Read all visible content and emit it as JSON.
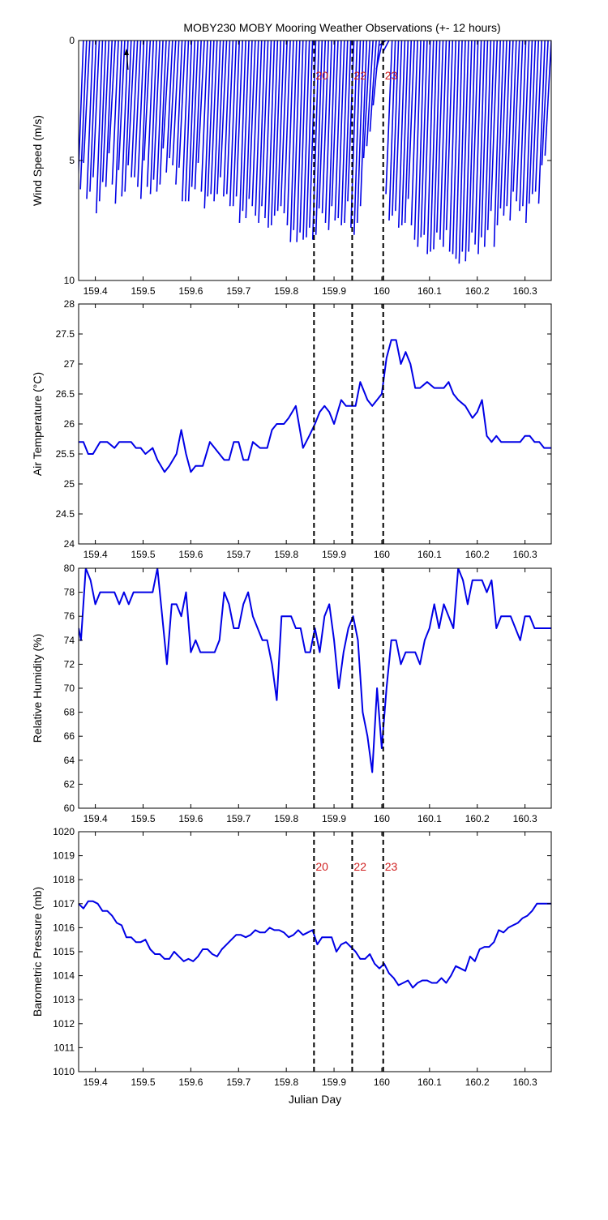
{
  "title": "MOBY230 MOBY Mooring Weather Observations (+- 12 hours)",
  "colors": {
    "series": "#0000e6",
    "marker_label": "#d02020",
    "axes": "#000000"
  },
  "markers": [
    {
      "x": 159.858,
      "label": "20"
    },
    {
      "x": 159.938,
      "label": "22"
    },
    {
      "x": 160.003,
      "label": "23"
    }
  ],
  "chart_data": [
    {
      "type": "line",
      "name": "wind",
      "ylabel": "Wind Speed (m/s)",
      "xlabel": "",
      "xlim": [
        159.365,
        160.355
      ],
      "ylim": [
        0,
        10
      ],
      "y_reversed": true,
      "grid": false,
      "x_ticks": [
        159.4,
        159.5,
        159.6,
        159.7,
        159.8,
        159.9,
        160,
        160.1,
        160.2,
        160.3
      ],
      "y_ticks": [
        0,
        5,
        10
      ],
      "show_marker_labels": true,
      "start_x": 159.375,
      "end_x": 160.355,
      "count": 148,
      "ends": [
        6.9,
        6.2,
        5.1,
        6.6,
        6.3,
        5.7,
        7.2,
        6.7,
        5.9,
        6.1,
        4.7,
        6.0,
        6.8,
        5.4,
        6.5,
        6.3,
        5.2,
        5.7,
        5.7,
        6.1,
        6.6,
        5.0,
        6.1,
        6.4,
        5.8,
        6.3,
        6.0,
        4.5,
        5.5,
        4.9,
        5.2,
        6.0,
        5.3,
        6.7,
        6.7,
        6.7,
        6.1,
        6.2,
        5.1,
        6.3,
        7.0,
        6.5,
        6.4,
        6.7,
        6.4,
        5.7,
        6.5,
        6.4,
        6.9,
        6.9,
        6.5,
        7.6,
        7.1,
        7.4,
        6.6,
        6.9,
        7.3,
        7.6,
        6.9,
        7.4,
        7.8,
        7.7,
        7.3,
        7.1,
        6.9,
        7.2,
        7.7,
        8.4,
        7.9,
        8.4,
        8.0,
        8.3,
        8.2,
        7.8,
        8.3,
        8.1,
        7.0,
        7.2,
        7.6,
        7.9,
        6.9,
        7.5,
        7.4,
        7.7,
        7.6,
        6.7,
        7.8,
        8.1,
        7.6,
        6.9,
        4.9,
        4.4,
        3.8,
        2.7,
        1.2,
        0.2,
        0.5,
        6.4,
        7.5,
        7.3,
        7.1,
        7.8,
        7.7,
        7.6,
        6.6,
        7.7,
        8.3,
        8.6,
        8.2,
        8.1,
        8.9,
        8.8,
        8.7,
        8.0,
        8.3,
        8.6,
        7.9,
        8.8,
        8.9,
        9.1,
        9.3,
        8.8,
        9.2,
        8.8,
        8.0,
        8.5,
        8.9,
        8.2,
        8.6,
        7.9,
        7.1,
        8.6,
        7.7,
        7.0,
        7.3,
        6.9,
        7.5,
        6.3,
        6.7,
        7.1,
        6.9,
        7.6,
        6.8,
        6.4,
        6.3,
        6.8,
        5.2,
        4.8
      ]
    },
    {
      "type": "line",
      "name": "air-temperature",
      "ylabel": "Air Temperature (°C)",
      "xlabel": "",
      "xlim": [
        159.365,
        160.355
      ],
      "ylim": [
        24,
        28
      ],
      "y_reversed": false,
      "grid": false,
      "x_ticks": [
        159.4,
        159.5,
        159.6,
        159.7,
        159.8,
        159.9,
        160,
        160.1,
        160.2,
        160.3
      ],
      "y_ticks": [
        24,
        24.5,
        25,
        25.5,
        26,
        26.5,
        27,
        27.5,
        28
      ],
      "show_marker_labels": false,
      "x": [
        159.365,
        159.375,
        159.385,
        159.395,
        159.41,
        159.425,
        159.44,
        159.45,
        159.46,
        159.475,
        159.485,
        159.495,
        159.505,
        159.52,
        159.53,
        159.545,
        159.555,
        159.57,
        159.58,
        159.59,
        159.6,
        159.61,
        159.625,
        159.64,
        159.65,
        159.66,
        159.67,
        159.68,
        159.69,
        159.7,
        159.71,
        159.72,
        159.73,
        159.745,
        159.76,
        159.77,
        159.78,
        159.795,
        159.805,
        159.82,
        159.835,
        159.848,
        159.86,
        159.87,
        159.88,
        159.89,
        159.9,
        159.915,
        159.925,
        159.935,
        159.945,
        159.955,
        159.97,
        159.98,
        159.99,
        160.0,
        160.01,
        160.02,
        160.03,
        160.04,
        160.05,
        160.06,
        160.07,
        160.08,
        160.095,
        160.11,
        160.12,
        160.13,
        160.14,
        160.15,
        160.16,
        160.175,
        160.19,
        160.2,
        160.21,
        160.22,
        160.23,
        160.24,
        160.25,
        160.26,
        160.27,
        160.28,
        160.29,
        160.3,
        160.31,
        160.32,
        160.33,
        160.34,
        160.355
      ],
      "y": [
        25.7,
        25.7,
        25.5,
        25.5,
        25.7,
        25.7,
        25.6,
        25.7,
        25.7,
        25.7,
        25.6,
        25.6,
        25.5,
        25.6,
        25.4,
        25.2,
        25.3,
        25.5,
        25.9,
        25.5,
        25.2,
        25.3,
        25.3,
        25.7,
        25.6,
        25.5,
        25.4,
        25.4,
        25.7,
        25.7,
        25.4,
        25.4,
        25.7,
        25.6,
        25.6,
        25.9,
        26.0,
        26.0,
        26.1,
        26.3,
        25.6,
        25.8,
        26.0,
        26.2,
        26.3,
        26.2,
        26.0,
        26.4,
        26.3,
        26.3,
        26.3,
        26.7,
        26.4,
        26.3,
        26.4,
        26.5,
        27.1,
        27.4,
        27.4,
        27.0,
        27.2,
        27.0,
        26.6,
        26.6,
        26.7,
        26.6,
        26.6,
        26.6,
        26.7,
        26.5,
        26.4,
        26.3,
        26.1,
        26.2,
        26.4,
        25.8,
        25.7,
        25.8,
        25.7,
        25.7,
        25.7,
        25.7,
        25.7,
        25.8,
        25.8,
        25.7,
        25.7,
        25.6,
        25.6
      ]
    },
    {
      "type": "line",
      "name": "relative-humidity",
      "ylabel": "Relative Humidity (%)",
      "xlabel": "",
      "xlim": [
        159.365,
        160.355
      ],
      "ylim": [
        60,
        80
      ],
      "y_reversed": false,
      "grid": false,
      "x_ticks": [
        159.4,
        159.5,
        159.6,
        159.7,
        159.8,
        159.9,
        160,
        160.1,
        160.2,
        160.3
      ],
      "y_ticks": [
        60,
        62,
        64,
        66,
        68,
        70,
        72,
        74,
        76,
        78,
        80
      ],
      "show_marker_labels": false,
      "x": [
        159.365,
        159.37,
        159.38,
        159.39,
        159.4,
        159.41,
        159.42,
        159.43,
        159.44,
        159.45,
        159.46,
        159.47,
        159.48,
        159.49,
        159.5,
        159.51,
        159.52,
        159.53,
        159.54,
        159.55,
        159.56,
        159.57,
        159.58,
        159.59,
        159.6,
        159.61,
        159.62,
        159.63,
        159.64,
        159.65,
        159.66,
        159.67,
        159.68,
        159.69,
        159.7,
        159.71,
        159.72,
        159.73,
        159.74,
        159.75,
        159.76,
        159.77,
        159.78,
        159.79,
        159.8,
        159.81,
        159.82,
        159.83,
        159.84,
        159.85,
        159.86,
        159.87,
        159.88,
        159.89,
        159.9,
        159.91,
        159.92,
        159.93,
        159.94,
        159.95,
        159.96,
        159.97,
        159.98,
        159.99,
        160.0,
        160.01,
        160.02,
        160.03,
        160.04,
        160.05,
        160.06,
        160.07,
        160.08,
        160.09,
        160.1,
        160.11,
        160.12,
        160.13,
        160.14,
        160.15,
        160.16,
        160.17,
        160.18,
        160.19,
        160.2,
        160.21,
        160.22,
        160.23,
        160.24,
        160.25,
        160.26,
        160.27,
        160.28,
        160.29,
        160.3,
        160.31,
        160.32,
        160.33,
        160.34,
        160.35,
        160.355
      ],
      "y": [
        75.0,
        74.0,
        80.0,
        79.0,
        77.0,
        78.0,
        78.0,
        78.0,
        78.0,
        77.0,
        78.0,
        77.0,
        78.0,
        78.0,
        78.0,
        78.0,
        78.0,
        80.0,
        76.0,
        72.0,
        77.0,
        77.0,
        76.0,
        78.0,
        73.0,
        74.0,
        73.0,
        73.0,
        73.0,
        73.0,
        74.0,
        78.0,
        77.0,
        75.0,
        75.0,
        77.0,
        78.0,
        76.0,
        75.0,
        74.0,
        74.0,
        72.0,
        69.0,
        76.0,
        76.0,
        76.0,
        75.0,
        75.0,
        73.0,
        73.0,
        75.0,
        73.0,
        76.0,
        77.0,
        74.0,
        70.0,
        73.0,
        75.0,
        76.0,
        74.0,
        68.0,
        66.0,
        63.0,
        70.0,
        65.0,
        70.0,
        74.0,
        74.0,
        72.0,
        73.0,
        73.0,
        73.0,
        72.0,
        74.0,
        75.0,
        77.0,
        75.0,
        77.0,
        76.0,
        75.0,
        80.0,
        79.0,
        77.0,
        79.0,
        79.0,
        79.0,
        78.0,
        79.0,
        75.0,
        76.0,
        76.0,
        76.0,
        75.0,
        74.0,
        76.0,
        76.0,
        75.0,
        75.0,
        75.0,
        75.0,
        75.0
      ]
    },
    {
      "type": "line",
      "name": "barometric-pressure",
      "ylabel": "Barometric Pressure (mb)",
      "xlabel": "Julian Day",
      "xlim": [
        159.365,
        160.355
      ],
      "ylim": [
        1010,
        1020
      ],
      "y_reversed": false,
      "grid": false,
      "x_ticks": [
        159.4,
        159.5,
        159.6,
        159.7,
        159.8,
        159.9,
        160,
        160.1,
        160.2,
        160.3
      ],
      "y_ticks": [
        1010,
        1011,
        1012,
        1013,
        1014,
        1015,
        1016,
        1017,
        1018,
        1019,
        1020
      ],
      "show_marker_labels": true,
      "x": [
        159.365,
        159.375,
        159.385,
        159.395,
        159.405,
        159.415,
        159.425,
        159.435,
        159.445,
        159.455,
        159.465,
        159.475,
        159.485,
        159.495,
        159.505,
        159.515,
        159.525,
        159.535,
        159.545,
        159.555,
        159.565,
        159.575,
        159.585,
        159.595,
        159.605,
        159.615,
        159.625,
        159.635,
        159.645,
        159.655,
        159.665,
        159.675,
        159.685,
        159.695,
        159.705,
        159.715,
        159.725,
        159.735,
        159.745,
        159.755,
        159.765,
        159.775,
        159.785,
        159.795,
        159.805,
        159.815,
        159.825,
        159.835,
        159.845,
        159.855,
        159.865,
        159.875,
        159.885,
        159.895,
        159.905,
        159.915,
        159.925,
        159.935,
        159.945,
        159.955,
        159.965,
        159.975,
        159.985,
        159.995,
        160.005,
        160.015,
        160.025,
        160.035,
        160.045,
        160.055,
        160.065,
        160.075,
        160.085,
        160.095,
        160.105,
        160.115,
        160.125,
        160.135,
        160.145,
        160.155,
        160.165,
        160.175,
        160.185,
        160.195,
        160.205,
        160.215,
        160.225,
        160.235,
        160.245,
        160.255,
        160.265,
        160.275,
        160.285,
        160.295,
        160.305,
        160.315,
        160.325,
        160.335,
        160.345,
        160.355
      ],
      "y": [
        1017.0,
        1016.8,
        1017.1,
        1017.1,
        1017.0,
        1016.7,
        1016.7,
        1016.5,
        1016.2,
        1016.1,
        1015.6,
        1015.6,
        1015.4,
        1015.4,
        1015.5,
        1015.1,
        1014.9,
        1014.9,
        1014.7,
        1014.7,
        1015.0,
        1014.8,
        1014.6,
        1014.7,
        1014.6,
        1014.8,
        1015.1,
        1015.1,
        1014.9,
        1014.8,
        1015.1,
        1015.3,
        1015.5,
        1015.7,
        1015.7,
        1015.6,
        1015.7,
        1015.9,
        1015.8,
        1015.8,
        1016.0,
        1015.9,
        1015.9,
        1015.8,
        1015.6,
        1015.7,
        1015.9,
        1015.7,
        1015.8,
        1015.9,
        1015.3,
        1015.6,
        1015.6,
        1015.6,
        1015.0,
        1015.3,
        1015.4,
        1015.2,
        1015.0,
        1014.7,
        1014.7,
        1014.9,
        1014.5,
        1014.3,
        1014.5,
        1014.1,
        1013.9,
        1013.6,
        1013.7,
        1013.8,
        1013.5,
        1013.7,
        1013.8,
        1013.8,
        1013.7,
        1013.7,
        1013.9,
        1013.7,
        1014.0,
        1014.4,
        1014.3,
        1014.2,
        1014.8,
        1014.6,
        1015.1,
        1015.2,
        1015.2,
        1015.4,
        1015.9,
        1015.8,
        1016.0,
        1016.1,
        1016.2,
        1016.4,
        1016.5,
        1016.7,
        1017.0,
        1017.0,
        1017.0,
        1017.0
      ]
    }
  ]
}
